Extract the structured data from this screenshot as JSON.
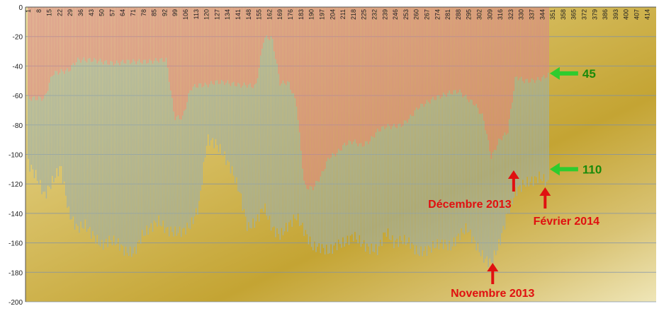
{
  "chart_data": {
    "type": "bar",
    "title": "",
    "xlabel": "",
    "ylabel": "",
    "ylim": [
      -200,
      0
    ],
    "xlim": [
      1,
      420
    ],
    "grid": true,
    "y_ticks": [
      0,
      -20,
      -40,
      -60,
      -80,
      -100,
      -120,
      -140,
      -160,
      -180,
      -200
    ],
    "x_tick_labels": [
      "1",
      "8",
      "15",
      "22",
      "29",
      "36",
      "43",
      "50",
      "57",
      "64",
      "71",
      "78",
      "85",
      "92",
      "99",
      "106",
      "113",
      "120",
      "127",
      "134",
      "141",
      "148",
      "155",
      "162",
      "169",
      "176",
      "183",
      "190",
      "197",
      "204",
      "211",
      "218",
      "225",
      "232",
      "239",
      "246",
      "253",
      "260",
      "267",
      "274",
      "281",
      "288",
      "295",
      "302",
      "309",
      "316",
      "323",
      "330",
      "337",
      "344",
      "351",
      "358",
      "365",
      "372",
      "379",
      "386",
      "393",
      "400",
      "407",
      "414"
    ],
    "series": [
      {
        "color": "#d98a8a",
        "x_range": [
          1,
          348
        ],
        "values": [
          -62,
          -62,
          -62,
          -45,
          -44,
          -43,
          -36,
          -36,
          -36,
          -37,
          -38,
          -38,
          -37,
          -37,
          -37,
          -37,
          -36,
          -36,
          -75,
          -75,
          -55,
          -53,
          -53,
          -51,
          -51,
          -52,
          -53,
          -53,
          -54,
          -21,
          -21,
          -52,
          -51,
          -65,
          -122,
          -123,
          -115,
          -102,
          -99,
          -93,
          -91,
          -94,
          -91,
          -84,
          -81,
          -81,
          -80,
          -75,
          -68,
          -65,
          -62,
          -60,
          -58,
          -57,
          -62,
          -66,
          -75,
          -102,
          -90,
          -85,
          -47,
          -50,
          -50,
          -49,
          -46
        ]
      },
      {
        "color": "#9fb0a8",
        "x_range": [
          1,
          348
        ],
        "values": [
          -106,
          -115,
          -128,
          -118,
          -108,
          -140,
          -150,
          -148,
          -155,
          -162,
          -158,
          -160,
          -166,
          -167,
          -155,
          -150,
          -145,
          -151,
          -153,
          -152,
          -148,
          -135,
          -90,
          -92,
          -100,
          -110,
          -125,
          -150,
          -146,
          -135,
          -150,
          -155,
          -148,
          -142,
          -152,
          -163,
          -163,
          -166,
          -161,
          -160,
          -155,
          -160,
          -164,
          -165,
          -152,
          -160,
          -158,
          -160,
          -167,
          -165,
          -162,
          -160,
          -163,
          -155,
          -150,
          -160,
          -170,
          -174,
          -160,
          -140,
          -125,
          -120,
          -118,
          -115,
          -120
        ]
      }
    ],
    "annotations": [
      {
        "text": "45",
        "y": -45,
        "color": "#2ecc2e",
        "arrow": "left"
      },
      {
        "text": "110",
        "y": -110,
        "color": "#2ecc2e",
        "arrow": "left"
      },
      {
        "text": "Novembre 2013",
        "x": 309,
        "color": "#e01010",
        "arrow": "up"
      },
      {
        "text": "Décembre 2013",
        "x": 323,
        "color": "#e01010",
        "arrow": "up"
      },
      {
        "text": "Février 2014",
        "x": 344,
        "color": "#e01010",
        "arrow": "up"
      }
    ]
  }
}
